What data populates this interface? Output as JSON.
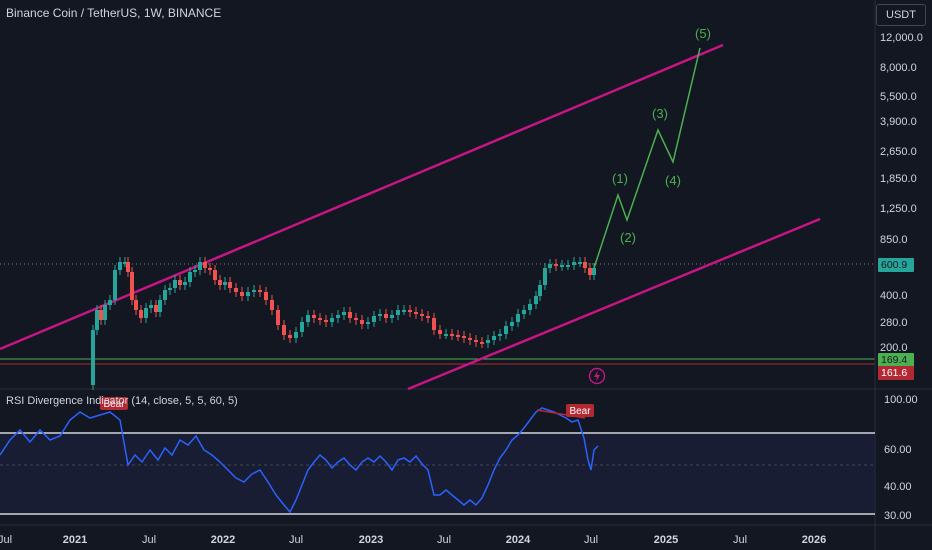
{
  "header": {
    "symbol_title": "Binance Coin / TetherUS, 1W, BINANCE"
  },
  "toolbar": {
    "currency_label": "USDT"
  },
  "price_axis": {
    "tick_labels": [
      "12,000.0",
      "8,000.0",
      "5,500.0",
      "3,900.0",
      "2,650.0",
      "1,850.0",
      "1,250.0",
      "850.0",
      "400.0",
      "280.0",
      "200.0"
    ],
    "last_price_label": "600.9",
    "support_label": "169.4",
    "low_label": "161.6"
  },
  "rsi_axis": {
    "tick_labels": [
      "100.00",
      "60.00",
      "40.00",
      "30.00"
    ]
  },
  "time_axis": {
    "tick_labels": [
      "Jul",
      "2021",
      "Jul",
      "2022",
      "Jul",
      "2023",
      "Jul",
      "2024",
      "Jul",
      "2025",
      "Jul",
      "2026"
    ]
  },
  "rsi_indicator": {
    "title": "RSI Divergence Indicator (14, close, 5, 5, 60, 5)",
    "bear_label": "Bear"
  },
  "elliott_wave": {
    "labels": [
      "(1)",
      "(2)",
      "(3)",
      "(4)",
      "(5)"
    ]
  },
  "colors": {
    "background": "#131722",
    "up_candle": "#26a69a",
    "down_candle": "#ef5350",
    "channel": "#c71585",
    "wave": "#4caf50",
    "rsi_line": "#2962ff",
    "bear": "#b22833"
  },
  "icons": {
    "flash": "lightning-bolt-icon"
  }
}
